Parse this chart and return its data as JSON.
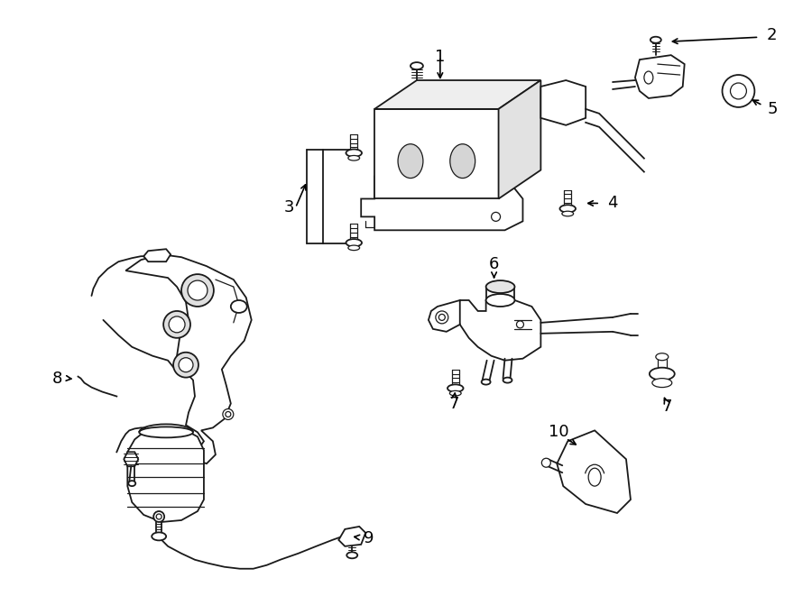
{
  "bg_color": "#ffffff",
  "line_color": "#1a1a1a",
  "label_color": "#000000",
  "label_fontsize": 13,
  "fig_width": 9.0,
  "fig_height": 6.61,
  "dpi": 100
}
